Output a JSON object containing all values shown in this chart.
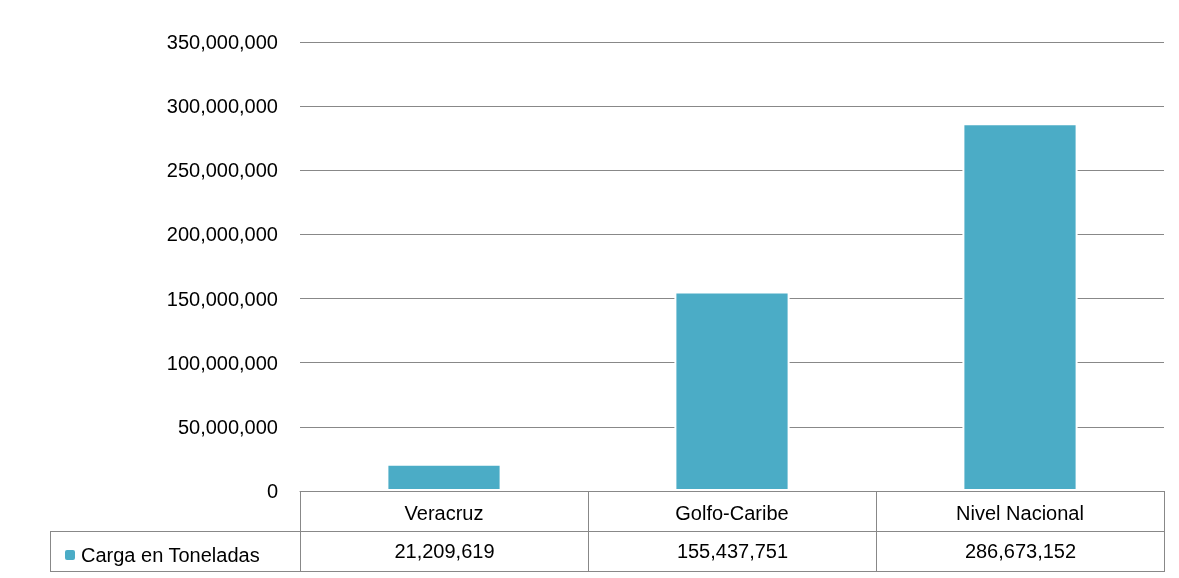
{
  "chart_data": {
    "type": "bar",
    "categories": [
      "Veracruz",
      "Golfo-Caribe",
      "Nivel Nacional"
    ],
    "series": [
      {
        "name": "Carga en Toneladas",
        "color": "#4bacc6",
        "values": [
          21209619,
          155437751,
          286673152
        ],
        "value_labels": [
          "21,209,619",
          "155,437,751",
          "286,673,152"
        ]
      }
    ],
    "ylim": [
      0,
      350000000
    ],
    "yticks": [
      0,
      {
        "value": 50000000,
        "label": "50,000,000"
      },
      {
        "value": 100000000,
        "label": "100,000,000"
      },
      {
        "value": 150000000,
        "label": "150,000,000"
      },
      {
        "value": 200000000,
        "label": "200,000,000"
      },
      {
        "value": 250000000,
        "label": "250,000,000"
      },
      {
        "value": 300000000,
        "label": "300,000,000"
      },
      {
        "value": 350000000,
        "label": "350,000,000"
      }
    ],
    "grid": "y",
    "legend": "bottom left"
  }
}
